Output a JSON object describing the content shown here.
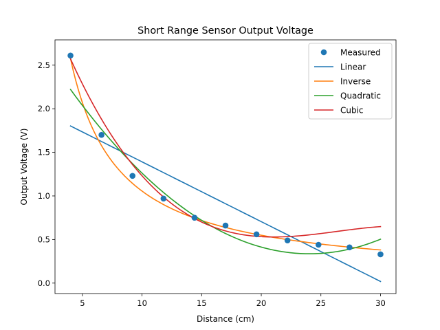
{
  "chart_data": {
    "type": "line",
    "title": "Short Range Sensor Output Voltage",
    "xlabel": "Distance (cm)",
    "ylabel": "Output Voltage (V)",
    "xlim": [
      2.7,
      31.3
    ],
    "ylim": [
      -0.12,
      2.79
    ],
    "xticks": [
      5,
      10,
      15,
      20,
      25,
      30
    ],
    "yticks": [
      0.0,
      0.5,
      1.0,
      1.5,
      2.0,
      2.5
    ],
    "xtick_labels": [
      "5",
      "10",
      "15",
      "20",
      "25",
      "30"
    ],
    "ytick_labels": [
      "0.0",
      "0.5",
      "1.0",
      "1.5",
      "2.0",
      "2.5"
    ],
    "grid": false,
    "legend_position": "top-right",
    "measured": {
      "name": "Measured",
      "color": "#1f77b4",
      "x": [
        4.0,
        6.6,
        9.2,
        11.8,
        14.4,
        17.0,
        19.6,
        22.2,
        24.8,
        27.4,
        30.0
      ],
      "y": [
        2.61,
        1.7,
        1.23,
        0.97,
        0.75,
        0.66,
        0.56,
        0.49,
        0.44,
        0.41,
        0.33
      ]
    },
    "fits": [
      {
        "name": "Linear",
        "color": "#1f77b4",
        "model": "linear",
        "coef": [
          2.077,
          -0.0686
        ]
      },
      {
        "name": "Inverse",
        "color": "#ff7f0e",
        "model": "inverse",
        "coef": [
          10.13,
          0.0426
        ]
      },
      {
        "name": "Quadratic",
        "color": "#2ca02c",
        "model": "poly",
        "coef": [
          3.049,
          -0.2257,
          0.004695
        ]
      },
      {
        "name": "Cubic",
        "color": "#d62728",
        "model": "poly",
        "coef": [
          4.022,
          -0.4265,
          0.01687,
          -0.0002134
        ]
      }
    ],
    "x_range": [
      4.0,
      30.0
    ]
  }
}
